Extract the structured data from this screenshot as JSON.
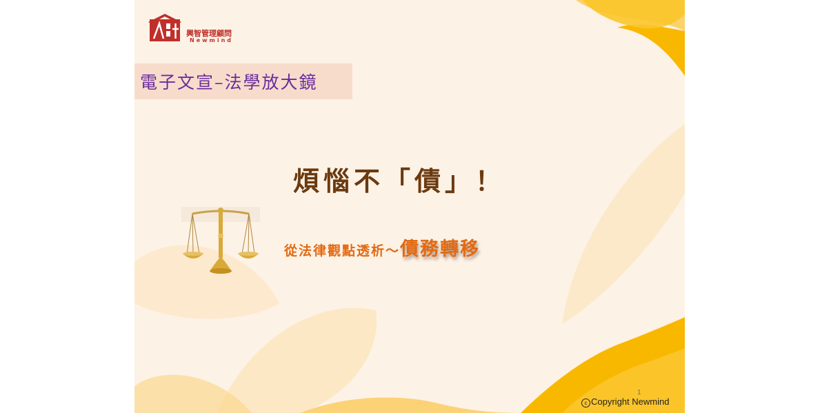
{
  "logo": {
    "company_cn": "興智管理顧問",
    "company_en": "Newmind"
  },
  "banner": {
    "text": "電子文宣–法學放大鏡"
  },
  "title": {
    "main": "煩惱不「債」！"
  },
  "subtitle": {
    "lead": "從法律觀點透析～",
    "emphasis": "債務轉移"
  },
  "footer": {
    "page_number": "1",
    "copyright_symbol": "c",
    "copyright_text": "Copyright Newmind"
  },
  "colors": {
    "slide_bg": "#fdf2e6",
    "accent_yellow": "#f9b800",
    "logo_red": "#c0302a",
    "banner_text": "#6a2c9e",
    "title_brown": "#6b3a10",
    "subtitle_orange": "#e26a12"
  },
  "icons": {
    "logo": "newmind-house-logo",
    "scale": "justice-scale-icon"
  }
}
